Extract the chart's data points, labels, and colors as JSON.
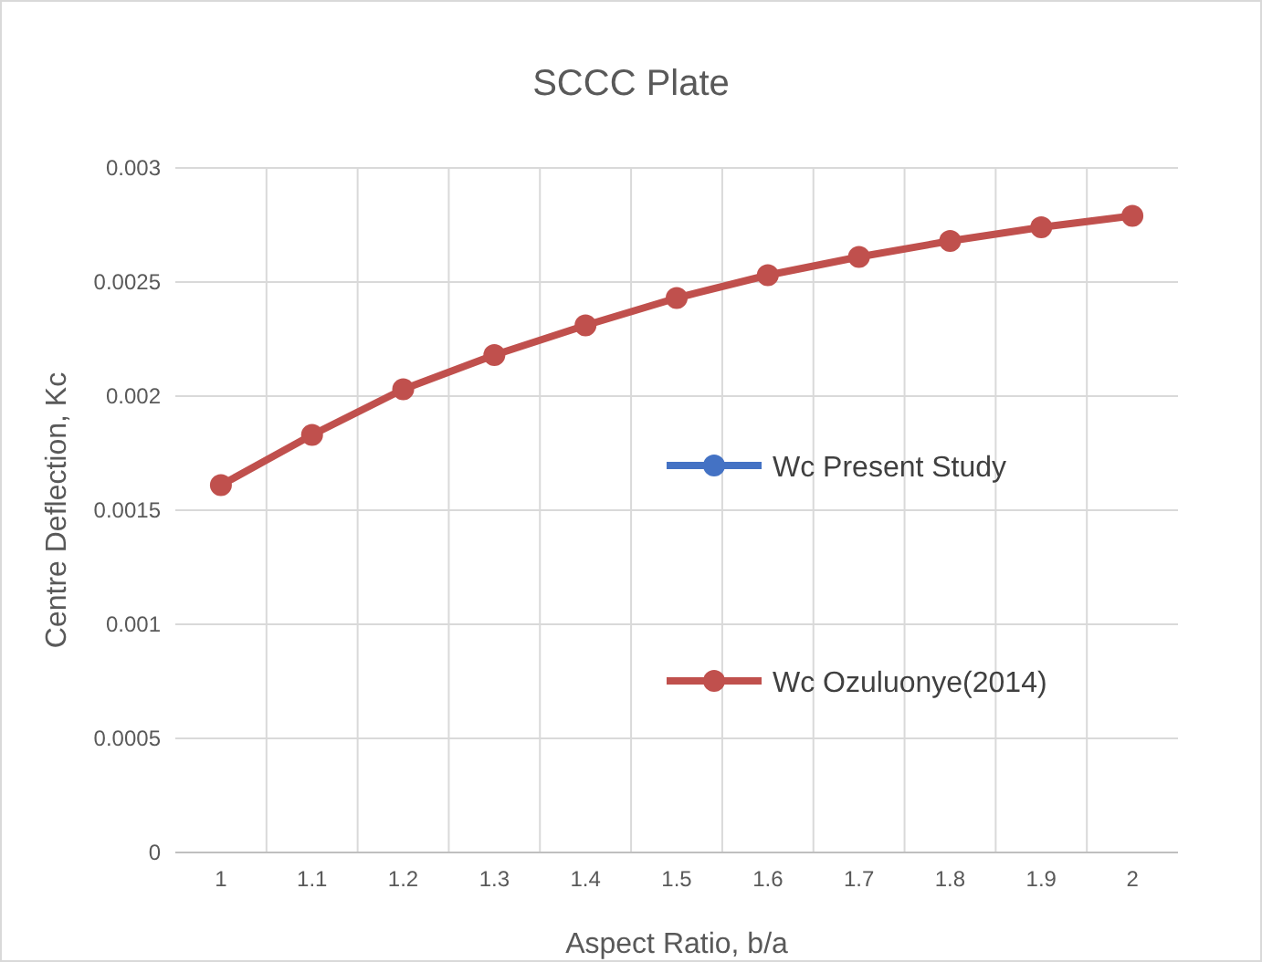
{
  "chart_data": {
    "type": "line",
    "title": "SCCC Plate",
    "xlabel": "Aspect Ratio, b/a",
    "ylabel": "Centre Deflection, Kc",
    "categories": [
      "1",
      "1.1",
      "1.2",
      "1.3",
      "1.4",
      "1.5",
      "1.6",
      "1.7",
      "1.8",
      "1.9",
      "2"
    ],
    "series": [
      {
        "name": "Wc Present Study",
        "color": "#4472c4",
        "values": [
          null,
          null,
          null,
          null,
          null,
          null,
          null,
          null,
          null,
          null,
          null
        ]
      },
      {
        "name": "Wc Ozuluonye(2014)",
        "color": "#c0504d",
        "values": [
          0.00161,
          0.00183,
          0.00203,
          0.00218,
          0.00231,
          0.00243,
          0.00253,
          0.00261,
          0.00268,
          0.00274,
          0.00279
        ]
      }
    ],
    "ylim": [
      0,
      0.003
    ],
    "yticks": [
      0,
      0.0005,
      0.001,
      0.0015,
      0.002,
      0.0025,
      0.003
    ],
    "grid": true,
    "legend": "right",
    "marker": "circle",
    "line_style": "solid"
  }
}
